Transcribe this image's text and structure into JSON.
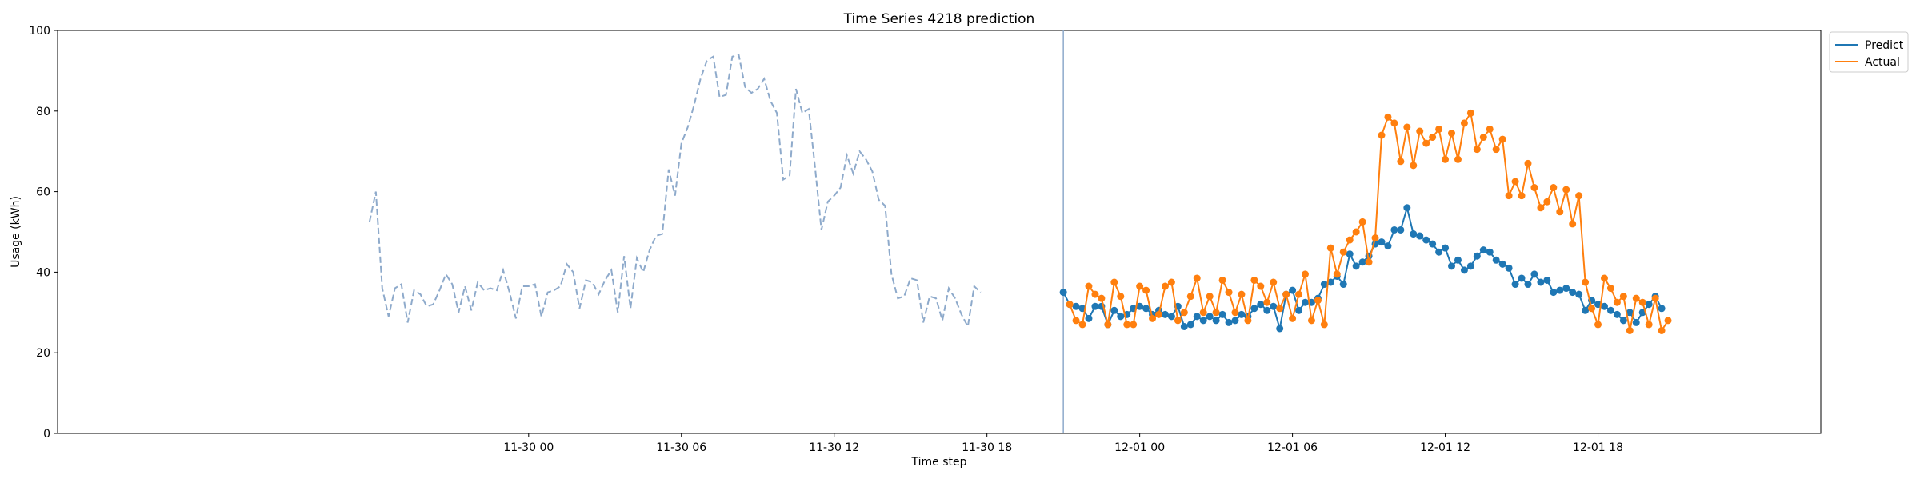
{
  "chart_data": {
    "type": "line",
    "title": "Time Series 4218 prediction",
    "xlabel": "Time step",
    "ylabel": "Usage (kWh)",
    "ylim": [
      0,
      100
    ],
    "xlim": [
      "2024-11-29 05:30",
      "2024-12-02 02:45"
    ],
    "yticks": [
      0,
      20,
      40,
      60,
      80,
      100
    ],
    "xticks": [
      {
        "t": "2024-11-30 00:00",
        "label": "11-30 00"
      },
      {
        "t": "2024-11-30 06:00",
        "label": "11-30 06"
      },
      {
        "t": "2024-11-30 12:00",
        "label": "11-30 12"
      },
      {
        "t": "2024-11-30 18:00",
        "label": "11-30 18"
      },
      {
        "t": "2024-12-01 00:00",
        "label": "12-01 00"
      },
      {
        "t": "2024-12-01 06:00",
        "label": "12-01 06"
      },
      {
        "t": "2024-12-01 12:00",
        "label": "12-01 12"
      },
      {
        "t": "2024-12-01 18:00",
        "label": "12-01 18"
      }
    ],
    "grid": false,
    "legend_position": "outside top-right",
    "colors": {
      "predict": "#1f77b4",
      "actual": "#ff7f0e",
      "history": "#8eaacb",
      "forecast_start": "#8eaacb"
    },
    "forecast_start": "2024-11-30 21:00",
    "history": {
      "start": "2024-11-29 17:45",
      "interval_minutes": 15,
      "values": [
        52.5,
        60.0,
        36.0,
        29.0,
        36.0,
        37.0,
        27.5,
        35.5,
        34.5,
        31.5,
        32.0,
        35.5,
        39.5,
        37.0,
        30.0,
        36.5,
        30.5,
        37.5,
        35.5,
        36.0,
        35.5,
        40.5,
        35.0,
        28.5,
        36.5,
        36.5,
        37.0,
        29.0,
        35.0,
        35.5,
        36.5,
        42.0,
        40.0,
        31.0,
        38.0,
        37.5,
        34.5,
        38.0,
        40.5,
        30.0,
        44.0,
        31.0,
        43.5,
        40.0,
        45.5,
        49.0,
        49.5,
        65.5,
        59.0,
        72.0,
        76.0,
        81.5,
        88.0,
        92.5,
        93.5,
        83.5,
        84.0,
        93.5,
        94.0,
        86.0,
        84.5,
        85.5,
        88.0,
        82.5,
        79.5,
        63.0,
        64.0,
        85.5,
        79.5,
        80.5,
        66.0,
        50.5,
        57.5,
        59.0,
        61.0,
        69.0,
        64.5,
        70.0,
        68.0,
        65.0,
        58.0,
        56.5,
        39.5,
        33.5,
        34.0,
        38.5,
        38.0,
        27.5,
        34.0,
        33.5,
        28.0,
        36.0,
        33.5,
        29.5,
        26.5,
        36.5,
        35.0
      ]
    },
    "series": [
      {
        "name": "Predict",
        "start": "2024-11-30 21:00",
        "interval_minutes": 15,
        "values": [
          35.0,
          32.0,
          31.5,
          31.0,
          28.5,
          31.5,
          31.5,
          27.0,
          30.5,
          29.0,
          29.5,
          31.0,
          31.5,
          31.0,
          29.5,
          30.5,
          29.5,
          29.0,
          31.5,
          26.5,
          27.0,
          29.0,
          28.0,
          29.0,
          28.0,
          29.5,
          27.5,
          28.0,
          29.5,
          29.0,
          31.0,
          32.0,
          30.5,
          31.5,
          26.0,
          34.5,
          35.5,
          30.5,
          32.5,
          32.5,
          33.5,
          37.0,
          37.5,
          39.0,
          37.0,
          44.5,
          41.5,
          42.5,
          44.0,
          47.0,
          47.5,
          46.5,
          50.5,
          50.5,
          56.0,
          49.5,
          49.0,
          48.0,
          47.0,
          45.0,
          46.0,
          41.5,
          43.0,
          40.5,
          41.5,
          44.0,
          45.5,
          45.0,
          43.0,
          42.0,
          41.0,
          37.0,
          38.5,
          37.0,
          39.5,
          37.5,
          38.0,
          35.0,
          35.5,
          36.0,
          35.0,
          34.5,
          30.5,
          33.0,
          32.0,
          31.5,
          30.5,
          29.5,
          28.0,
          30.0,
          27.5,
          30.0,
          32.0,
          34.0,
          31.0
        ]
      },
      {
        "name": "Actual",
        "start": "2024-11-30 21:15",
        "interval_minutes": 15,
        "values": [
          32.0,
          28.0,
          27.0,
          36.5,
          34.5,
          33.5,
          27.0,
          37.5,
          34.0,
          27.0,
          27.0,
          36.5,
          35.5,
          28.5,
          29.5,
          36.5,
          37.5,
          28.0,
          30.0,
          34.0,
          38.5,
          30.0,
          34.0,
          30.0,
          38.0,
          35.0,
          30.0,
          34.5,
          28.0,
          38.0,
          36.5,
          32.5,
          37.5,
          31.0,
          34.5,
          28.5,
          34.5,
          39.5,
          28.0,
          33.0,
          27.0,
          46.0,
          39.5,
          45.0,
          48.0,
          50.0,
          52.5,
          42.5,
          48.5,
          74.0,
          78.5,
          77.0,
          67.5,
          76.0,
          66.5,
          75.0,
          72.0,
          73.5,
          75.5,
          68.0,
          74.5,
          68.0,
          77.0,
          79.5,
          70.5,
          73.5,
          75.5,
          70.5,
          73.0,
          59.0,
          62.5,
          59.0,
          67.0,
          61.0,
          56.0,
          57.5,
          61.0,
          55.0,
          60.5,
          52.0,
          59.0,
          37.5,
          31.0,
          27.0,
          38.5,
          36.0,
          32.5,
          34.0,
          25.5,
          33.5,
          32.5,
          27.0,
          33.5,
          25.5,
          28.0
        ]
      }
    ]
  }
}
